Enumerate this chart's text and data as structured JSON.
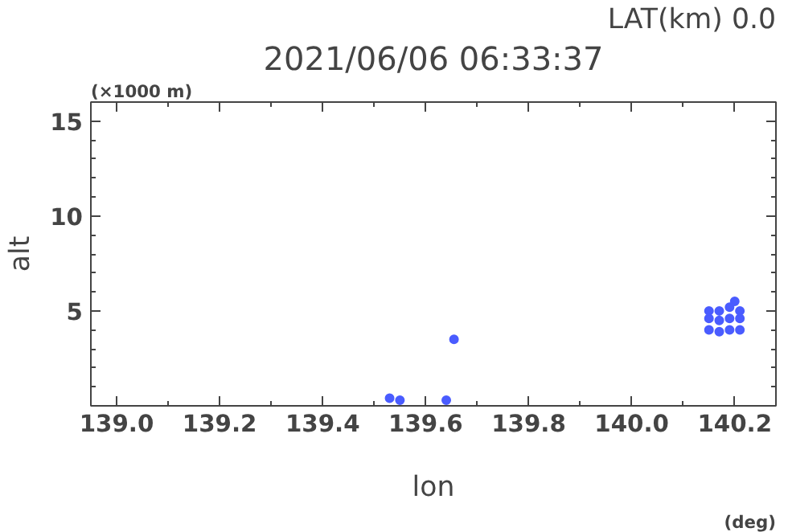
{
  "chart_data": {
    "type": "scatter",
    "title": "2021/06/06 06:33:37",
    "xlabel": "lon",
    "ylabel": "alt",
    "annotations": [
      "LAT(km) 0.0",
      "(×1000 m)",
      "(deg)"
    ],
    "xlim": [
      138.95,
      140.28
    ],
    "ylim": [
      0,
      16
    ],
    "xticks": [
      {
        "value": 139.0,
        "label": "139.0"
      },
      {
        "value": 139.1,
        "label": null
      },
      {
        "value": 139.2,
        "label": "139.2"
      },
      {
        "value": 139.3,
        "label": null
      },
      {
        "value": 139.4,
        "label": "139.4"
      },
      {
        "value": 139.5,
        "label": null
      },
      {
        "value": 139.6,
        "label": "139.6"
      },
      {
        "value": 139.7,
        "label": null
      },
      {
        "value": 139.8,
        "label": "139.8"
      },
      {
        "value": 139.9,
        "label": null
      },
      {
        "value": 140.0,
        "label": "140.0"
      },
      {
        "value": 140.1,
        "label": null
      },
      {
        "value": 140.2,
        "label": "140.2"
      }
    ],
    "yticks": [
      {
        "value": 1,
        "label": null
      },
      {
        "value": 2,
        "label": null
      },
      {
        "value": 3,
        "label": null
      },
      {
        "value": 4,
        "label": null
      },
      5,
      {
        "value": 6,
        "label": null
      },
      {
        "value": 7,
        "label": null
      },
      {
        "value": 8,
        "label": null
      },
      {
        "value": 9,
        "label": null
      },
      10,
      {
        "value": 11,
        "label": null
      },
      {
        "value": 12,
        "label": null
      },
      {
        "value": 13,
        "label": null
      },
      {
        "value": 14,
        "label": null
      },
      15
    ],
    "grid": false,
    "marker": "circle",
    "series": [
      {
        "color": "#4a5cff",
        "x": [
          140.15,
          140.15,
          140.15,
          140.17,
          140.17,
          140.17,
          140.19,
          140.19,
          140.19,
          140.21,
          140.21,
          140.21,
          140.2,
          139.53,
          139.55,
          139.655,
          139.64
        ],
        "values": [
          4.0,
          4.6,
          5.0,
          3.9,
          4.5,
          5.0,
          4.0,
          4.6,
          5.2,
          4.0,
          4.6,
          5.0,
          5.5,
          0.4,
          0.3,
          3.5,
          0.3
        ]
      }
    ]
  }
}
